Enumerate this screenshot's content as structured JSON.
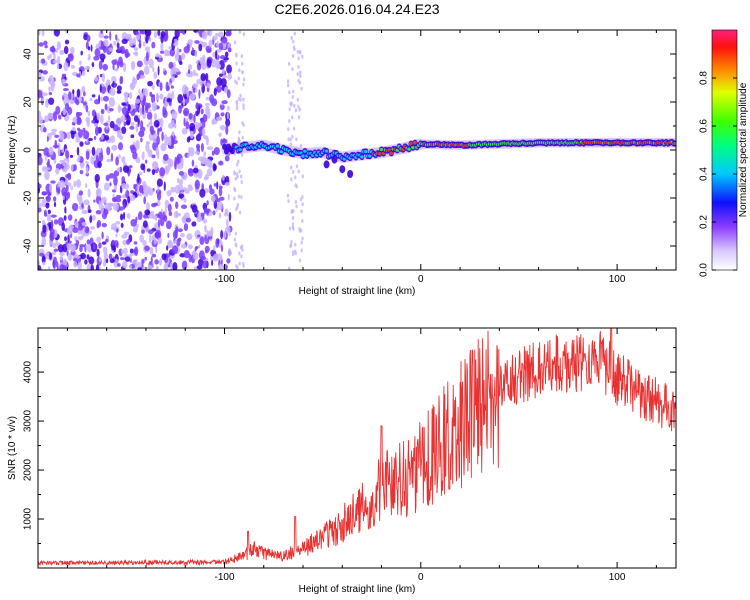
{
  "page_title": "C2E6.2026.016.04.24.E23",
  "colors": {
    "line": "#e83232",
    "weak": "#c9b3ff",
    "medium": "#7d3cff",
    "strong": "#3d00dd",
    "cyan": "#00e5ff",
    "green": "#3cff3c",
    "red": "#ff2020",
    "axis": "#000000"
  },
  "chart_data": [
    {
      "type": "heatmap",
      "title": "C2E6.2026.016.04.24.E23",
      "xlabel": "Height of straight line (km)",
      "ylabel": "Frequency (Hz)",
      "xlim": [
        -195,
        130
      ],
      "ylim": [
        -50,
        50
      ],
      "x_ticks": [
        -100,
        0,
        100
      ],
      "y_ticks": [
        -40,
        -20,
        0,
        20,
        40
      ],
      "x_tick_labels": [
        "-100",
        "0",
        "100"
      ],
      "y_tick_labels": [
        "-40",
        "-20",
        "0",
        "20",
        "40"
      ],
      "ridge": {
        "x": [
          -100,
          -90,
          -80,
          -70,
          -60,
          -50,
          -40,
          -30,
          -20,
          -10,
          0,
          20,
          40,
          60,
          80,
          100,
          130
        ],
        "freq": [
          0.5,
          1.0,
          2.0,
          0.0,
          -1.5,
          -1.0,
          -3.0,
          -2.0,
          -1.0,
          0.5,
          2.5,
          2.0,
          2.5,
          3.0,
          3.0,
          3.0,
          3.0
        ]
      },
      "colorbar": {
        "label": "Normalized spectral amplitude",
        "range": [
          0,
          1
        ],
        "ticks": [
          0.0,
          0.2,
          0.4,
          0.6,
          0.8
        ],
        "tick_labels": [
          "0.0",
          "0.2",
          "0.4",
          "0.6",
          "0.8"
        ]
      }
    },
    {
      "type": "line",
      "xlabel": "Height of straight line (km)",
      "ylabel": "SNR (10 * v/v)",
      "xlim": [
        -195,
        130
      ],
      "ylim": [
        0,
        4900
      ],
      "x_ticks": [
        -100,
        0,
        100
      ],
      "y_ticks": [
        1000,
        2000,
        3000,
        4000
      ],
      "x_tick_labels": [
        "-100",
        "0",
        "100"
      ],
      "y_tick_labels": [
        "1000",
        "2000",
        "3000",
        "4000"
      ],
      "series": [
        {
          "name": "SNR",
          "envelope_x": [
            -195,
            -100,
            -90,
            -85,
            -80,
            -70,
            -60,
            -50,
            -40,
            -30,
            -20,
            -10,
            0,
            10,
            20,
            30,
            40,
            50,
            60,
            70,
            80,
            90,
            100,
            110,
            120,
            130
          ],
          "envelope_y": [
            100,
            120,
            250,
            400,
            300,
            250,
            400,
            600,
            900,
            1200,
            1600,
            1800,
            2100,
            2500,
            2900,
            3300,
            3600,
            3900,
            4100,
            4200,
            4200,
            4300,
            3900,
            3600,
            3400,
            3200
          ],
          "spikes": [
            {
              "x": -20,
              "y": 2900
            },
            {
              "x": -64,
              "y": 1050
            },
            {
              "x": -88,
              "y": 750
            },
            {
              "x": 97,
              "y": 4900
            }
          ]
        }
      ]
    }
  ]
}
